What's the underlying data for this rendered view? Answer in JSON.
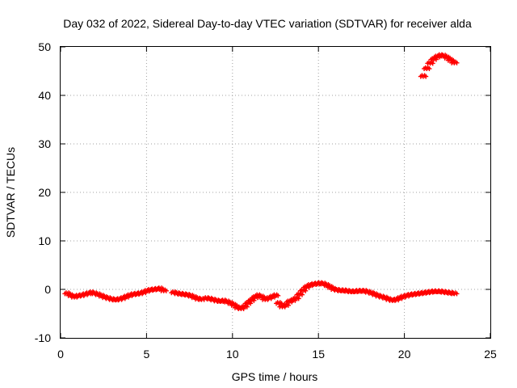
{
  "chart_data": {
    "type": "scatter",
    "title": "Day 032 of 2022, Sidereal Day-to-day VTEC variation (SDTVAR) for receiver alda",
    "xlabel": "GPS time / hours",
    "ylabel": "SDTVAR / TECUs",
    "xlim": [
      0,
      25
    ],
    "ylim": [
      -10,
      50
    ],
    "xticks": [
      "0",
      "5",
      "10",
      "15",
      "20",
      "25"
    ],
    "yticks": [
      "-10",
      "0",
      "10",
      "20",
      "30",
      "40",
      "50"
    ],
    "grid": true,
    "marker": "+",
    "series_color": "#ff0000",
    "series": [
      {
        "name": "SDTVAR",
        "x": [
          0.4,
          0.6,
          0.8,
          1.0,
          1.2,
          1.4,
          1.6,
          1.8,
          2.0,
          2.2,
          2.4,
          2.6,
          2.8,
          3.0,
          3.2,
          3.4,
          3.6,
          3.8,
          4.0,
          4.2,
          4.4,
          4.6,
          4.8,
          5.0,
          5.2,
          5.4,
          5.6,
          5.8,
          6.0,
          6.6,
          6.8,
          7.0,
          7.2,
          7.4,
          7.6,
          7.8,
          8.0,
          8.2,
          8.5,
          8.7,
          8.9,
          9.1,
          9.3,
          9.5,
          9.7,
          9.9,
          10.1,
          10.3,
          10.5,
          10.7,
          10.9,
          11.1,
          11.3,
          11.5,
          11.7,
          11.9,
          12.1,
          12.3,
          12.5,
          12.7,
          12.9,
          13.1,
          13.3,
          13.5,
          13.7,
          13.9,
          14.1,
          14.3,
          14.5,
          14.7,
          14.9,
          15.1,
          15.3,
          15.5,
          15.7,
          15.9,
          16.1,
          16.3,
          16.5,
          16.7,
          16.9,
          17.1,
          17.3,
          17.5,
          17.7,
          17.9,
          18.1,
          18.3,
          18.5,
          18.7,
          18.9,
          19.1,
          19.3,
          19.5,
          19.7,
          19.9,
          20.1,
          20.3,
          20.5,
          20.7,
          20.9,
          21.1,
          21.3,
          21.5,
          21.7,
          21.9,
          22.1,
          22.3,
          22.5,
          22.7,
          22.9,
          21.1,
          21.3,
          21.5,
          21.7,
          21.9,
          22.1,
          22.3,
          22.5,
          22.7,
          22.9
        ],
        "y": [
          -0.8,
          -1.2,
          -1.5,
          -1.3,
          -1.2,
          -1.0,
          -0.8,
          -0.6,
          -0.8,
          -1.0,
          -1.3,
          -1.6,
          -1.8,
          -2.0,
          -2.1,
          -2.0,
          -1.8,
          -1.5,
          -1.2,
          -1.0,
          -0.9,
          -0.8,
          -0.6,
          -0.3,
          -0.1,
          0.0,
          0.1,
          0.2,
          -0.2,
          -0.6,
          -0.8,
          -0.9,
          -1.0,
          -1.1,
          -1.3,
          -1.6,
          -1.9,
          -2.0,
          -1.8,
          -1.9,
          -2.1,
          -2.3,
          -2.4,
          -2.3,
          -2.5,
          -2.8,
          -3.2,
          -3.7,
          -3.9,
          -3.5,
          -2.8,
          -2.2,
          -1.6,
          -1.2,
          -1.5,
          -2.0,
          -1.8,
          -1.5,
          -1.2,
          -2.8,
          -3.5,
          -3.2,
          -2.5,
          -2.2,
          -1.8,
          -1.0,
          -0.2,
          0.5,
          0.9,
          1.1,
          1.2,
          1.3,
          1.2,
          0.9,
          0.5,
          0.1,
          -0.1,
          -0.2,
          -0.2,
          -0.3,
          -0.4,
          -0.4,
          -0.3,
          -0.3,
          -0.3,
          -0.5,
          -0.7,
          -1.0,
          -1.3,
          -1.5,
          -1.7,
          -2.0,
          -2.2,
          -2.1,
          -1.8,
          -1.5,
          -1.3,
          -1.1,
          -1.0,
          -0.9,
          -0.8,
          -0.7,
          -0.6,
          -0.5,
          -0.4,
          -0.4,
          -0.4,
          -0.5,
          -0.6,
          -0.7,
          -0.8,
          44.0,
          45.6,
          46.7,
          47.5,
          48.0,
          48.3,
          48.2,
          47.8,
          47.3,
          46.8
        ]
      }
    ]
  }
}
